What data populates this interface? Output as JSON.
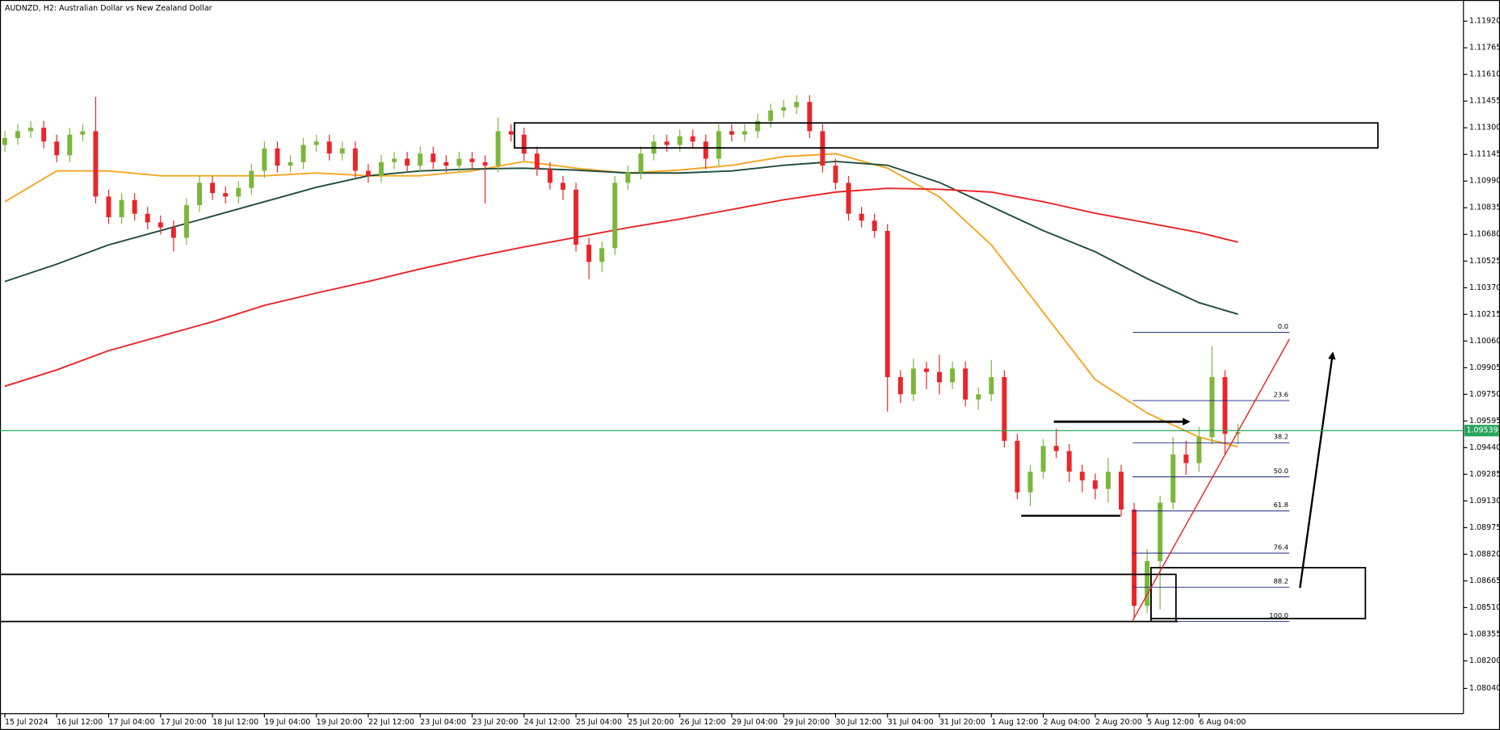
{
  "chart_data": {
    "type": "candlestick",
    "title": "AUDNZD, H2:  Australian Dollar vs New Zealand Dollar",
    "up_color": "#7cb63a",
    "down_color": "#e8262a",
    "categories": [
      "15 Jul 2024",
      null,
      null,
      null,
      "16 Jul 12:00",
      null,
      null,
      null,
      "17 Jul 04:00",
      null,
      null,
      null,
      "17 Jul 20:00",
      null,
      null,
      null,
      "18 Jul 12:00",
      null,
      null,
      null,
      "19 Jul 04:00",
      null,
      null,
      null,
      "19 Jul 20:00",
      null,
      null,
      null,
      "22 Jul 12:00",
      null,
      null,
      null,
      "23 Jul 04:00",
      null,
      null,
      null,
      "23 Jul 20:00",
      null,
      null,
      null,
      "24 Jul 12:00",
      null,
      null,
      null,
      "25 Jul 04:00",
      null,
      null,
      null,
      "25 Jul 20:00",
      null,
      null,
      null,
      "26 Jul 12:00",
      null,
      null,
      null,
      "29 Jul 04:00",
      null,
      null,
      null,
      "29 Jul 20:00",
      null,
      null,
      null,
      "30 Jul 12:00",
      null,
      null,
      null,
      "31 Jul 04:00",
      null,
      null,
      null,
      "31 Jul 20:00",
      null,
      null,
      null,
      "1 Aug 12:00",
      null,
      null,
      null,
      "2 Aug 04:00",
      null,
      null,
      null,
      "2 Aug 20:00",
      null,
      null,
      null,
      "5 Aug 12:00",
      null,
      null,
      null,
      "6 Aug 04:00",
      null,
      null,
      null
    ],
    "open": [
      1.112,
      1.1124,
      1.1128,
      1.113,
      1.1122,
      1.1114,
      1.1126,
      1.1128,
      1.109,
      1.1078,
      1.1088,
      1.108,
      1.1075,
      1.1072,
      1.1066,
      1.1085,
      1.1098,
      1.1092,
      1.109,
      1.1095,
      1.1105,
      1.1118,
      1.1108,
      1.111,
      1.112,
      1.1122,
      1.1115,
      1.1118,
      1.1105,
      1.1102,
      1.111,
      1.1112,
      1.1108,
      1.1115,
      1.111,
      1.1108,
      1.1112,
      1.111,
      1.1108,
      1.1128,
      1.1126,
      1.1115,
      1.1106,
      1.1098,
      1.1094,
      1.1062,
      1.1052,
      1.106,
      1.1098,
      1.1104,
      1.1115,
      1.1122,
      1.112,
      1.1125,
      1.1122,
      1.1112,
      1.1128,
      1.1126,
      1.1128,
      1.1134,
      1.114,
      1.1142,
      1.1145,
      1.1128,
      1.1108,
      1.1098,
      1.108,
      1.1076,
      1.107,
      1.0985,
      1.0975,
      1.099,
      1.0988,
      1.0982,
      1.099,
      1.0972,
      1.0975,
      1.0985,
      1.0948,
      1.0918,
      1.093,
      1.0945,
      1.0942,
      1.093,
      1.0925,
      1.092,
      1.093,
      1.0908,
      1.0852,
      1.0878,
      1.0912,
      1.094,
      1.0935,
      1.095,
      1.0985,
      1.0952
    ],
    "high": [
      1.1128,
      1.1132,
      1.1134,
      1.1134,
      1.1126,
      1.113,
      1.1132,
      1.1148,
      1.1094,
      1.1092,
      1.1092,
      1.1084,
      1.1079,
      1.1076,
      1.1089,
      1.1102,
      1.1102,
      1.1096,
      1.1099,
      1.1109,
      1.1122,
      1.1122,
      1.1114,
      1.1124,
      1.1126,
      1.1126,
      1.1122,
      1.1122,
      1.1109,
      1.1114,
      1.1116,
      1.1116,
      1.1119,
      1.1119,
      1.1114,
      1.1116,
      1.1116,
      1.1114,
      1.1136,
      1.1132,
      1.113,
      1.1119,
      1.111,
      1.1102,
      1.1098,
      1.1066,
      1.1064,
      1.1102,
      1.1108,
      1.1119,
      1.1126,
      1.1126,
      1.1129,
      1.1129,
      1.1126,
      1.1132,
      1.1132,
      1.1132,
      1.1138,
      1.1144,
      1.1146,
      1.1149,
      1.1149,
      1.1132,
      1.1112,
      1.1102,
      1.1084,
      1.108,
      1.1074,
      1.0989,
      1.0996,
      1.0994,
      1.0998,
      1.0994,
      1.0994,
      1.0979,
      1.0995,
      1.0989,
      1.0952,
      1.0934,
      1.0949,
      1.0955,
      1.0946,
      1.0934,
      1.0929,
      1.0938,
      1.0934,
      1.0912,
      1.0885,
      1.0916,
      1.095,
      1.0948,
      1.0956,
      1.1003,
      1.0989,
      1.0958
    ],
    "low": [
      1.1116,
      1.112,
      1.1124,
      1.1118,
      1.111,
      1.111,
      1.1122,
      1.1086,
      1.1074,
      1.1074,
      1.1076,
      1.1071,
      1.1068,
      1.1058,
      1.1062,
      1.1081,
      1.1088,
      1.1086,
      1.1086,
      1.1091,
      1.1101,
      1.1104,
      1.1104,
      1.1106,
      1.1116,
      1.1111,
      1.1111,
      1.1101,
      1.1098,
      1.1098,
      1.1106,
      1.1104,
      1.1104,
      1.1106,
      1.1104,
      1.1104,
      1.1106,
      1.1086,
      1.1104,
      1.1122,
      1.1111,
      1.1102,
      1.1094,
      1.1088,
      1.1058,
      1.1042,
      1.1046,
      1.1056,
      1.1094,
      1.11,
      1.1111,
      1.1116,
      1.1116,
      1.1118,
      1.1106,
      1.1108,
      1.1122,
      1.1122,
      1.1124,
      1.113,
      1.1136,
      1.1138,
      1.1124,
      1.1104,
      1.1094,
      1.1076,
      1.1072,
      1.1066,
      1.0965,
      1.097,
      1.0971,
      1.0978,
      1.0975,
      1.0978,
      1.0968,
      1.0966,
      1.0971,
      1.0944,
      1.0914,
      1.091,
      1.0926,
      1.0938,
      1.0924,
      1.0918,
      1.0914,
      1.0912,
      1.0904,
      1.0845,
      1.0848,
      1.085,
      1.0908,
      1.0928,
      1.093,
      1.0946,
      1.094,
      1.0946
    ],
    "close": [
      1.1124,
      1.1128,
      1.113,
      1.1122,
      1.1114,
      1.1126,
      1.1128,
      1.109,
      1.1078,
      1.1088,
      1.108,
      1.1075,
      1.1072,
      1.1066,
      1.1085,
      1.1098,
      1.1092,
      1.109,
      1.1095,
      1.1105,
      1.1118,
      1.1108,
      1.111,
      1.112,
      1.1122,
      1.1115,
      1.1118,
      1.1105,
      1.1102,
      1.111,
      1.1112,
      1.1108,
      1.1115,
      1.111,
      1.1108,
      1.1112,
      1.111,
      1.1108,
      1.1128,
      1.1126,
      1.1115,
      1.1106,
      1.1098,
      1.1094,
      1.1062,
      1.1052,
      1.106,
      1.1098,
      1.1104,
      1.1115,
      1.1122,
      1.112,
      1.1125,
      1.1122,
      1.1112,
      1.1128,
      1.1126,
      1.1128,
      1.1134,
      1.114,
      1.1142,
      1.1145,
      1.1128,
      1.1108,
      1.1098,
      1.108,
      1.1076,
      1.107,
      1.0985,
      1.0975,
      1.099,
      1.0988,
      1.0982,
      1.099,
      1.0972,
      1.0975,
      1.0985,
      1.0948,
      1.0918,
      1.093,
      1.0945,
      1.0942,
      1.093,
      1.0925,
      1.092,
      1.093,
      1.0908,
      1.0852,
      1.0878,
      1.0912,
      1.094,
      1.0935,
      1.095,
      1.0985,
      1.0952,
      1.0953
    ],
    "series": [
      {
        "color": "#f5a623",
        "x": [
          0,
          4,
          8,
          12,
          16,
          20,
          24,
          28,
          32,
          36,
          40,
          44,
          48,
          52,
          56,
          60,
          64,
          68,
          72,
          76,
          80,
          84,
          88,
          92,
          95
        ],
        "values": [
          1.1087,
          1.11049,
          1.11049,
          1.11021,
          1.11021,
          1.11021,
          1.11037,
          1.11021,
          1.11021,
          1.11049,
          1.11104,
          1.11065,
          1.11037,
          1.11054,
          1.11082,
          1.11132,
          1.11149,
          1.11065,
          1.10898,
          1.10619,
          1.10227,
          1.09836,
          1.09641,
          1.09501,
          1.09445
        ]
      },
      {
        "color": "#1e4d3a",
        "x": [
          0,
          4,
          8,
          12,
          16,
          20,
          24,
          28,
          32,
          36,
          40,
          44,
          48,
          52,
          56,
          60,
          64,
          68,
          72,
          76,
          80,
          84,
          88,
          92,
          95
        ],
        "values": [
          1.10406,
          1.10507,
          1.10619,
          1.10702,
          1.10786,
          1.1087,
          1.10954,
          1.11021,
          1.11049,
          1.1106,
          1.11065,
          1.11054,
          1.11037,
          1.11037,
          1.11049,
          1.11082,
          1.11104,
          1.11082,
          1.10982,
          1.10842,
          1.10702,
          1.10579,
          1.10423,
          1.10283,
          1.10216
        ]
      },
      {
        "color": "#e8262a",
        "x": [
          0,
          4,
          8,
          12,
          16,
          20,
          24,
          28,
          32,
          36,
          40,
          44,
          48,
          52,
          56,
          60,
          64,
          68,
          72,
          76,
          80,
          84,
          88,
          92,
          95
        ],
        "values": [
          1.09797,
          1.09892,
          1.10004,
          1.10088,
          1.10172,
          1.10267,
          1.10339,
          1.10406,
          1.10479,
          1.10546,
          1.10607,
          1.10663,
          1.10719,
          1.10769,
          1.10825,
          1.10881,
          1.10926,
          1.10948,
          1.10942,
          1.10926,
          1.1087,
          1.10803,
          1.10747,
          1.10691,
          1.10635
        ]
      }
    ],
    "fib": {
      "high": 1.1011,
      "low": 1.0843,
      "color": "#1a237e",
      "levels": [
        {
          "value": 0,
          "label": "0.0"
        },
        23.6,
        38.2,
        {
          "value": 50,
          "label": "50.0"
        },
        61.8,
        76.4,
        88.2,
        {
          "value": 100,
          "label": "100.0"
        }
      ]
    },
    "last_price": 1.09539,
    "last_price_color": "#26a65b",
    "ylim": [
      1.07893,
      1.12043
    ],
    "yticks": [
      {
        "value": 1.1192,
        "label": "1.11920"
      },
      1.11765,
      {
        "value": 1.1161,
        "label": "1.11610"
      },
      1.11455,
      {
        "value": 1.113,
        "label": "1.11300"
      },
      1.11145,
      {
        "value": 1.1099,
        "label": "1.10990"
      },
      1.10835,
      {
        "value": 1.1068,
        "label": "1.10680"
      },
      1.10525,
      {
        "value": 1.1037,
        "label": "1.10370"
      },
      1.10215,
      {
        "value": 1.1006,
        "label": "1.10060"
      },
      1.09905,
      {
        "value": 1.0975,
        "label": "1.09750"
      },
      1.09595,
      {
        "value": 1.0944,
        "label": "1.09440"
      },
      1.09285,
      {
        "value": 1.0913,
        "label": "1.09130"
      },
      1.08975,
      {
        "value": 1.0882,
        "label": "1.08820"
      },
      1.08665,
      {
        "value": 1.0851,
        "label": "1.08510"
      },
      1.08355,
      {
        "value": 1.082,
        "label": "1.08200"
      },
      {
        "value": 1.0804,
        "label": "1.08040"
      }
    ]
  }
}
